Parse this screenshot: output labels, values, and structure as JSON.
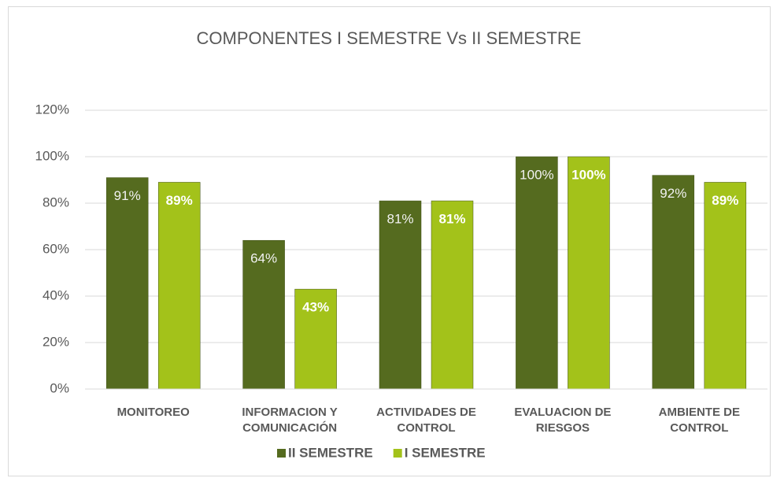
{
  "chart_data": {
    "type": "bar",
    "title": "COMPONENTES I SEMESTRE Vs II SEMESTRE",
    "categories": [
      "MONITOREO",
      "INFORMACION Y COMUNICACIÓN",
      "ACTIVIDADES DE CONTROL",
      "EVALUACION DE RIESGOS",
      "AMBIENTE DE CONTROL"
    ],
    "series": [
      {
        "name": "II SEMESTRE",
        "color": "#556b1f",
        "values": [
          91,
          64,
          81,
          100,
          92
        ],
        "value_labels": [
          "91%",
          "64%",
          "81%",
          "100%",
          "92%"
        ]
      },
      {
        "name": "I SEMESTRE",
        "color": "#a3c21a",
        "values": [
          89,
          43,
          81,
          100,
          89
        ],
        "value_labels": [
          "89%",
          "43%",
          "81%",
          "100%",
          "89%"
        ]
      }
    ],
    "ylim": [
      0,
      120
    ],
    "yticks": [
      {
        "value": 0,
        "label": "0%"
      },
      {
        "value": 20,
        "label": "20%"
      },
      {
        "value": 40,
        "label": "40%"
      },
      {
        "value": 60,
        "label": "60%"
      },
      {
        "value": 80,
        "label": "80%"
      },
      {
        "value": 100,
        "label": "100%"
      },
      {
        "value": 120,
        "label": "120%"
      }
    ],
    "grid": true,
    "legend": "bottom"
  }
}
